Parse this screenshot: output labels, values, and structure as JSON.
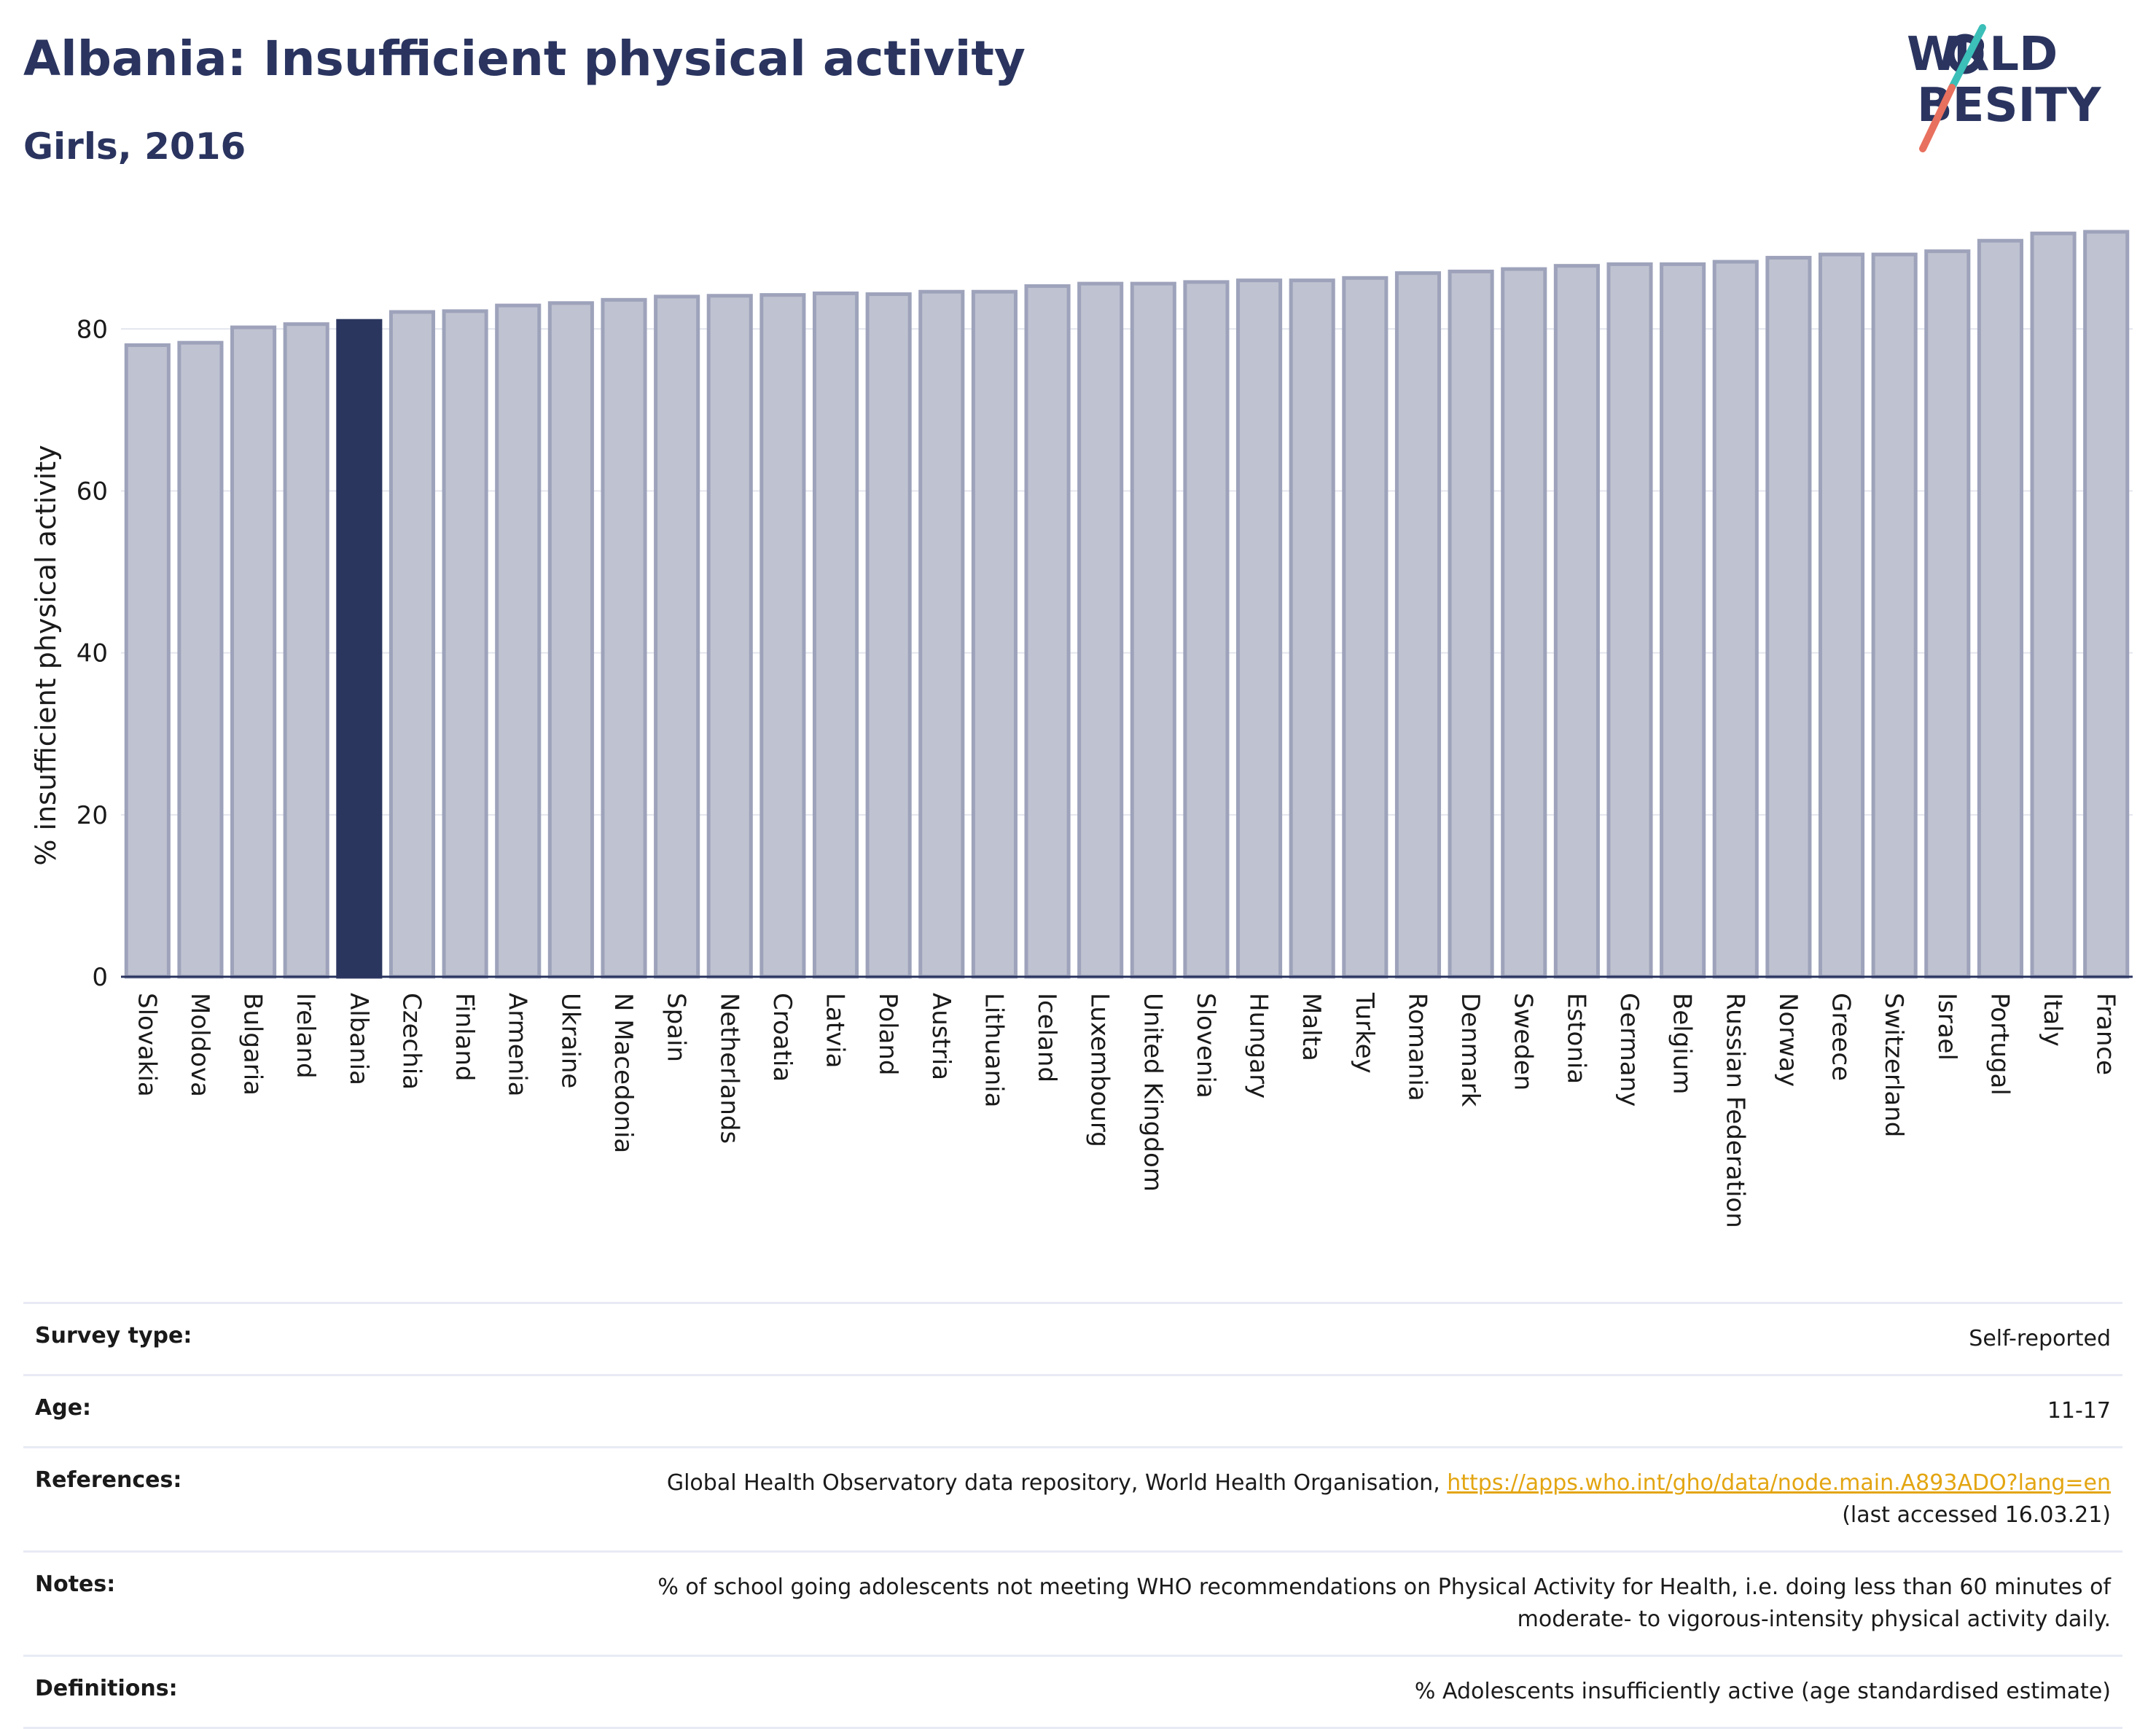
{
  "header": {
    "title": "Albania: Insufficient physical activity",
    "subtitle": "Girls, 2016"
  },
  "logo": {
    "line1": "WORLD",
    "line2": "OBESITY"
  },
  "colors": {
    "highlight": "#2b365f",
    "bar_fill": "#bfc2d0",
    "bar_stroke": "#9ea3bb",
    "title": "#2a345f",
    "link": "#e3a511",
    "logo_teal": "#3bbfb8",
    "logo_coral": "#e8705e"
  },
  "chart_data": {
    "type": "bar",
    "ylabel": "% insufficient physical activity",
    "ylim": [
      0,
      92
    ],
    "yticks": [
      0,
      20,
      40,
      60,
      80
    ],
    "grid": true,
    "highlight": "Albania",
    "categories": [
      "Slovakia",
      "Moldova",
      "Bulgaria",
      "Ireland",
      "Albania",
      "Czechia",
      "Finland",
      "Armenia",
      "Ukraine",
      "N Macedonia",
      "Spain",
      "Netherlands",
      "Croatia",
      "Latvia",
      "Poland",
      "Austria",
      "Lithuania",
      "Iceland",
      "Luxembourg",
      "United Kingdom",
      "Slovenia",
      "Hungary",
      "Malta",
      "Turkey",
      "Romania",
      "Denmark",
      "Sweden",
      "Estonia",
      "Germany",
      "Belgium",
      "Russian Federation",
      "Norway",
      "Greece",
      "Switzerland",
      "Israel",
      "Portugal",
      "Italy",
      "France"
    ],
    "values": [
      78.0,
      78.3,
      80.2,
      80.6,
      81.0,
      82.1,
      82.2,
      82.9,
      83.2,
      83.6,
      84.0,
      84.1,
      84.2,
      84.4,
      84.3,
      84.6,
      84.6,
      85.3,
      85.6,
      85.6,
      85.8,
      86.0,
      86.0,
      86.3,
      86.9,
      87.1,
      87.4,
      87.8,
      88.0,
      88.0,
      88.3,
      88.8,
      89.2,
      89.2,
      89.6,
      90.9,
      91.8,
      92.0
    ]
  },
  "info": {
    "survey_type": {
      "label": "Survey type:",
      "value": "Self-reported"
    },
    "age": {
      "label": "Age:",
      "value": "11-17"
    },
    "references": {
      "label": "References:",
      "text": "Global Health Observatory data repository, World Health Organisation, ",
      "link": "https://apps.who.int/gho/data/node.main.A893ADO?lang=en",
      "accessed": "(last accessed 16.03.21)"
    },
    "notes": {
      "label": "Notes:",
      "line1": "% of school going adolescents not meeting WHO recommendations on Physical Activity for Health, i.e. doing less than 60 minutes of",
      "line2": "moderate- to vigorous-intensity physical activity daily."
    },
    "definitions": {
      "label": "Definitions:",
      "value": "% Adolescents insufficiently active (age standardised estimate)"
    }
  }
}
